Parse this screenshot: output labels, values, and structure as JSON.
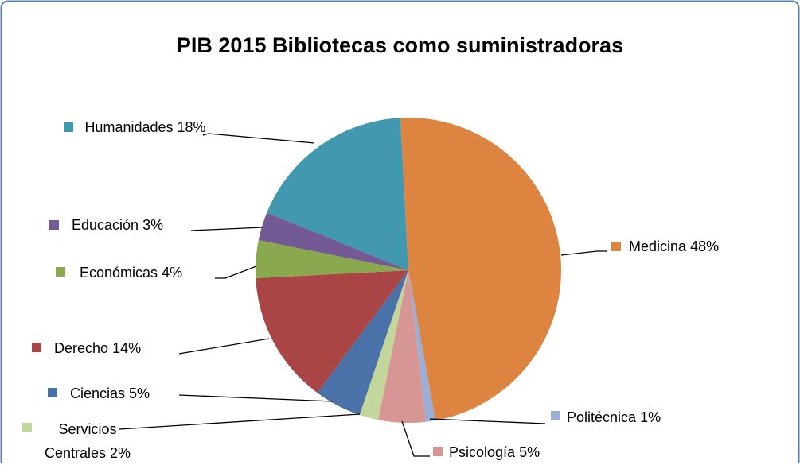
{
  "chart_data": {
    "type": "pie",
    "title": "PIB 2015 Bibliotecas como suministradoras",
    "categories": [
      "Medicina",
      "Politécnica",
      "Psicología",
      "Servicios Centrales",
      "Ciencias",
      "Derecho",
      "Económicas",
      "Educación",
      "Humanidades"
    ],
    "values": [
      48,
      1,
      5,
      2,
      5,
      14,
      4,
      3,
      18
    ],
    "value_labels": [
      "48%",
      "1%",
      "5%",
      "2%",
      "5%",
      "14%",
      "4%",
      "3%",
      "18%"
    ],
    "colors": [
      "#dd8540",
      "#9aaed8",
      "#d79594",
      "#c3d69b",
      "#4a72a8",
      "#a94545",
      "#8aa84e",
      "#735a95",
      "#4198af"
    ]
  }
}
